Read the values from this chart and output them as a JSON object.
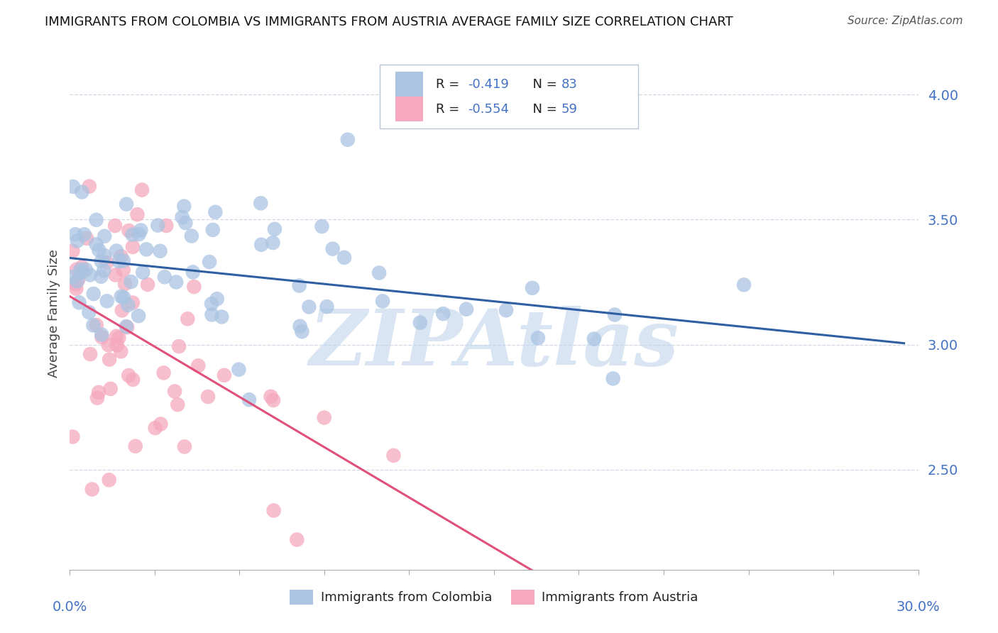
{
  "title": "IMMIGRANTS FROM COLOMBIA VS IMMIGRANTS FROM AUSTRIA AVERAGE FAMILY SIZE CORRELATION CHART",
  "source": "Source: ZipAtlas.com",
  "ylabel": "Average Family Size",
  "right_yticks": [
    2.5,
    3.0,
    3.5,
    4.0
  ],
  "xlim": [
    0.0,
    0.3
  ],
  "ylim": [
    2.1,
    4.15
  ],
  "watermark": "ZIPAtlas",
  "color_colombia": "#aac4e2",
  "color_austria": "#f5a8be",
  "line_color_colombia": "#2e5fa3",
  "line_color_austria": "#e0507a",
  "colombia_R": -0.419,
  "colombia_N": 83,
  "austria_R": -0.554,
  "austria_N": 59,
  "title_fontsize": 13,
  "source_fontsize": 11,
  "axis_label_fontsize": 13,
  "tick_label_fontsize": 14,
  "legend_color": "#4472c4",
  "watermark_color": "#c0d4ea",
  "background_color": "#ffffff",
  "grid_color": "#d0d8e8",
  "legend_text_r_color": "#222222",
  "legend_text_val_color": "#4472c4"
}
